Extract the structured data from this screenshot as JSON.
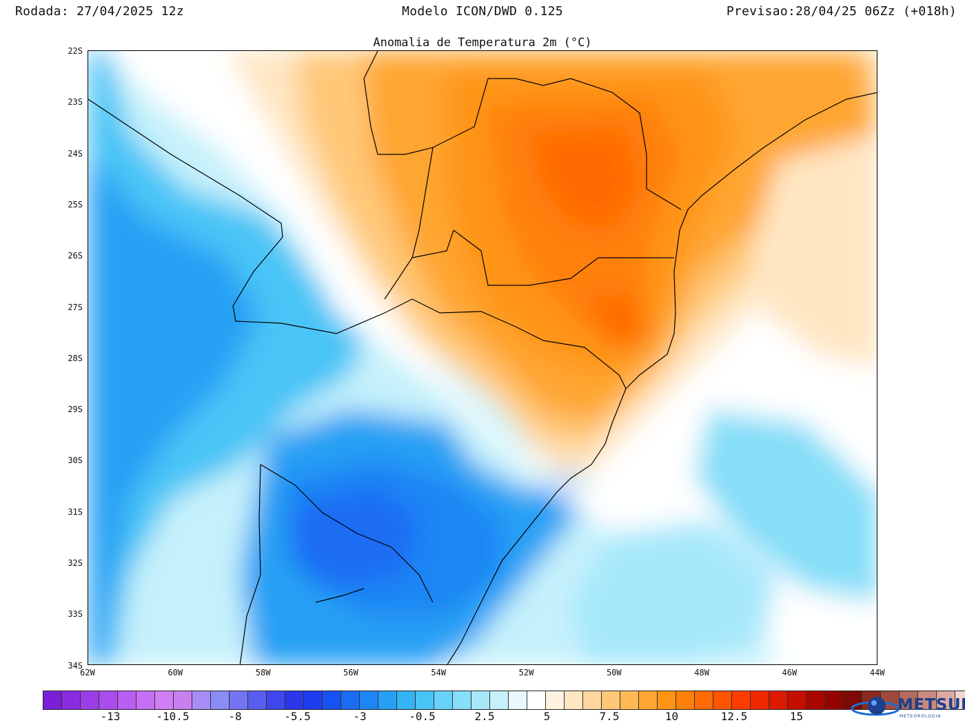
{
  "header": {
    "rodada": "Rodada: 27/04/2025 12z",
    "modelo": "Modelo ICON/DWD 0.125",
    "previsao": "Previsao:28/04/25 06Zz (+018h)"
  },
  "title": "Anomalia de Temperatura 2m (°C)",
  "lat_labels": [
    "22S",
    "23S",
    "24S",
    "25S",
    "26S",
    "27S",
    "28S",
    "29S",
    "30S",
    "31S",
    "32S",
    "33S",
    "34S"
  ],
  "lon_labels": [
    "62W",
    "60W",
    "58W",
    "56W",
    "54W",
    "52W",
    "50W",
    "48W",
    "46W",
    "44W"
  ],
  "colorbar": {
    "labels": [
      "-13",
      "-10.5",
      "-8",
      "-5.5",
      "-3",
      "-0.5",
      "2.5",
      "5",
      "7.5",
      "10",
      "12.5",
      "15"
    ],
    "colors": [
      "#7a1fd6",
      "#8a2be2",
      "#9b3ee8",
      "#aa4cee",
      "#b95ef2",
      "#c66ff4",
      "#d07ef5",
      "#c97ff0",
      "#a78cf5",
      "#8c8cf5",
      "#7474f3",
      "#5a5ef0",
      "#3e46ee",
      "#2a38ec",
      "#1f3df0",
      "#1652f2",
      "#1a6cf4",
      "#1e86f4",
      "#26a0f4",
      "#34b4f4",
      "#48c4f6",
      "#66d2f7",
      "#86def8",
      "#a6e8fa",
      "#c6f1fb",
      "#e8f8fd",
      "#ffffff",
      "#fff3e0",
      "#ffe6c2",
      "#ffd79e",
      "#ffc878",
      "#ffb854",
      "#ffa632",
      "#ff9414",
      "#ff8008",
      "#ff6a04",
      "#ff5402",
      "#ff3c00",
      "#f02800",
      "#dc1a00",
      "#c40e00",
      "#aa0600",
      "#920400",
      "#7e0a06",
      "#8a2a1e",
      "#9e4a3c",
      "#b46a5c",
      "#c88a80",
      "#dcaaa2",
      "#f2d4d0"
    ]
  },
  "logo": {
    "name": "METSUL",
    "sub": "METEOROLOGIA",
    "icon": "globe-icon"
  }
}
